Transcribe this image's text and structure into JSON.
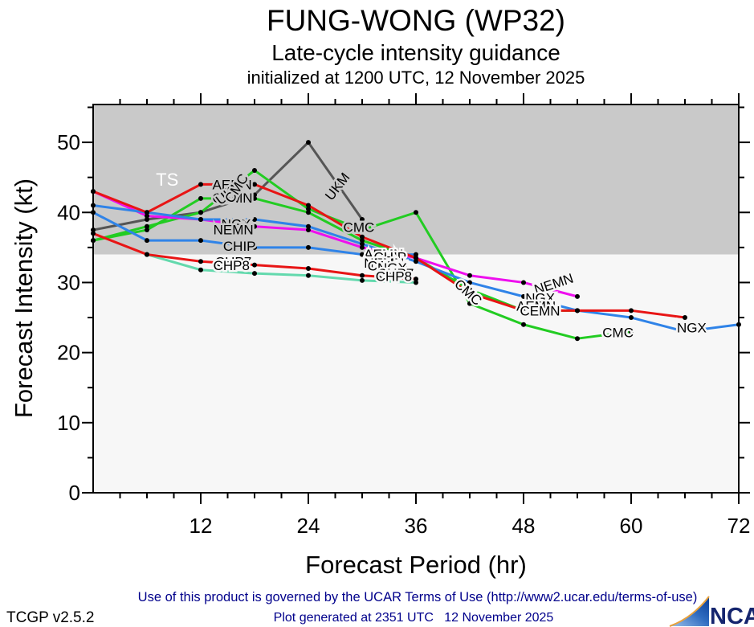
{
  "header": {
    "title": "FUNG-WONG (WP32)",
    "subtitle": "Late-cycle intensity guidance",
    "init_line": "initialized at 1200 UTC, 12 November 2025"
  },
  "footer": {
    "terms": "Use of this product is governed by the UCAR Terms of Use (http://www2.ucar.edu/terms-of-use)",
    "version": "TCGP v2.5.2",
    "generated": "Plot generated at 2351 UTC   12 November 2025",
    "logo_text": "NCAR",
    "terms_color": "#00008b",
    "generated_color": "#00008b"
  },
  "chart_data": {
    "type": "line",
    "title": "FUNG-WONG (WP32) late-cycle intensity guidance",
    "xlabel": "Forecast Period (hr)",
    "ylabel": "Forecast Intensity (kt)",
    "xlim": [
      0,
      72
    ],
    "ylim": [
      0,
      55.4
    ],
    "xticks": [
      12,
      24,
      36,
      48,
      60,
      72
    ],
    "yticks": [
      0,
      10,
      20,
      30,
      40,
      50
    ],
    "xminor_step": 3,
    "yminor_step": 5,
    "grid": false,
    "legend": "labels drawn along lines",
    "ts_threshold_kt": 34,
    "ts_label": "TS",
    "band_color_above": "#c9c9c9",
    "band_color_below": "#f7f7f7",
    "series": [
      {
        "name": "UKM",
        "color": "#555555",
        "points": [
          [
            0,
            37.5
          ],
          [
            6,
            39
          ],
          [
            12,
            40
          ],
          [
            18,
            42.5
          ],
          [
            24,
            50
          ],
          [
            30,
            39
          ]
        ]
      },
      {
        "name": "CMC",
        "color": "#22cc22",
        "points": [
          [
            0,
            36
          ],
          [
            6,
            38
          ],
          [
            12,
            40
          ],
          [
            18,
            46
          ],
          [
            24,
            40.5
          ],
          [
            30,
            37.5
          ],
          [
            36,
            40
          ],
          [
            42,
            27
          ],
          [
            48,
            24
          ],
          [
            54,
            22
          ],
          [
            60,
            23
          ]
        ]
      },
      {
        "name": "CEMN",
        "color": "#22cc22",
        "points": [
          [
            0,
            36
          ],
          [
            6,
            37.5
          ],
          [
            12,
            42
          ],
          [
            18,
            42
          ],
          [
            24,
            40
          ],
          [
            30,
            36
          ],
          [
            36,
            33.5
          ],
          [
            42,
            29
          ],
          [
            48,
            26
          ],
          [
            54,
            26
          ]
        ]
      },
      {
        "name": "NEMN",
        "color": "#ee10ee",
        "points": [
          [
            0,
            43
          ],
          [
            6,
            39.5
          ],
          [
            12,
            39
          ],
          [
            18,
            38
          ],
          [
            24,
            37.5
          ],
          [
            30,
            35
          ],
          [
            36,
            33.5
          ],
          [
            42,
            31
          ],
          [
            48,
            30
          ],
          [
            54,
            28
          ]
        ]
      },
      {
        "name": "CHIP",
        "color": "#2f83e8",
        "points": [
          [
            0,
            40
          ],
          [
            6,
            36
          ],
          [
            12,
            36
          ],
          [
            18,
            35
          ],
          [
            24,
            35
          ],
          [
            30,
            34
          ],
          [
            36,
            34
          ]
        ]
      },
      {
        "name": "NGX",
        "color": "#2f83e8",
        "points": [
          [
            0,
            41
          ],
          [
            6,
            40
          ],
          [
            12,
            39
          ],
          [
            18,
            39
          ],
          [
            24,
            38
          ],
          [
            30,
            35.5
          ],
          [
            36,
            33
          ],
          [
            42,
            30
          ],
          [
            48,
            28
          ],
          [
            54,
            26
          ],
          [
            60,
            25
          ],
          [
            66,
            23
          ],
          [
            72,
            24
          ]
        ]
      },
      {
        "name": "CHP8",
        "color": "#63d9ad",
        "points": [
          [
            6,
            34
          ],
          [
            12,
            31.8
          ],
          [
            18,
            31.3
          ],
          [
            24,
            31
          ],
          [
            30,
            30.3
          ],
          [
            36,
            30
          ]
        ]
      },
      {
        "name": "CHP7",
        "color": "#e81515",
        "points": [
          [
            0,
            37
          ],
          [
            6,
            34
          ],
          [
            12,
            33
          ],
          [
            18,
            32.5
          ],
          [
            24,
            32
          ],
          [
            30,
            31
          ],
          [
            36,
            30.5
          ]
        ]
      },
      {
        "name": "AEMN",
        "color": "#e81515",
        "points": [
          [
            0,
            43
          ],
          [
            6,
            40
          ],
          [
            12,
            44
          ],
          [
            18,
            44
          ],
          [
            24,
            41
          ],
          [
            30,
            36.5
          ],
          [
            36,
            33.5
          ],
          [
            42,
            28.5
          ],
          [
            48,
            26
          ],
          [
            54,
            26
          ],
          [
            60,
            26
          ],
          [
            66,
            25
          ]
        ]
      }
    ],
    "line_labels": [
      {
        "t": "TS",
        "hr": 7.0,
        "kt": 43.8,
        "size": 22,
        "color": "#ffffff"
      },
      {
        "t": "AEMN",
        "hr": 13.3,
        "kt": 43.3
      },
      {
        "t": "CEMN",
        "hr": 13.3,
        "kt": 41.4
      },
      {
        "t": "UKM",
        "hr": 14.2,
        "kt": 41.0,
        "rot": -38
      },
      {
        "t": "CMC",
        "hr": 15.5,
        "kt": 41.2,
        "rot": -58
      },
      {
        "t": "NGX",
        "hr": 14.3,
        "kt": 37.7
      },
      {
        "t": "NEMN",
        "hr": 13.4,
        "kt": 36.9
      },
      {
        "t": "CHIP",
        "hr": 14.5,
        "kt": 34.5
      },
      {
        "t": "CHP7",
        "hr": 13.6,
        "kt": 32.3
      },
      {
        "t": "CHP8",
        "hr": 13.4,
        "kt": 31.8
      },
      {
        "t": "UKM",
        "hr": 26.6,
        "kt": 41.6,
        "rot": -52
      },
      {
        "t": "CMC",
        "hr": 27.9,
        "kt": 37.2
      },
      {
        "t": "AEMN",
        "hr": 30.2,
        "kt": 33.4
      },
      {
        "t": "CHIP",
        "hr": 31.3,
        "kt": 33.0
      },
      {
        "t": "NEMN",
        "hr": 30.2,
        "kt": 32.1
      },
      {
        "t": "CEMN",
        "hr": 30.6,
        "kt": 31.7
      },
      {
        "t": "NGX",
        "hr": 31.7,
        "kt": 31.4
      },
      {
        "t": "CHP7",
        "hr": 31.7,
        "kt": 30.6
      },
      {
        "t": "CHP8",
        "hr": 31.5,
        "kt": 30.2
      },
      {
        "t": "CMC",
        "hr": 40.2,
        "kt": 29.6,
        "rot": 42
      },
      {
        "t": "NEMN",
        "hr": 49.4,
        "kt": 28.3,
        "rot": -18
      },
      {
        "t": "NGX",
        "hr": 48.2,
        "kt": 27.1
      },
      {
        "t": "AEMN",
        "hr": 47.2,
        "kt": 26.0
      },
      {
        "t": "CEMN",
        "hr": 47.6,
        "kt": 25.3
      },
      {
        "t": "CMC",
        "hr": 56.8,
        "kt": 22.2
      },
      {
        "t": "NGX",
        "hr": 65.1,
        "kt": 22.9
      }
    ]
  }
}
